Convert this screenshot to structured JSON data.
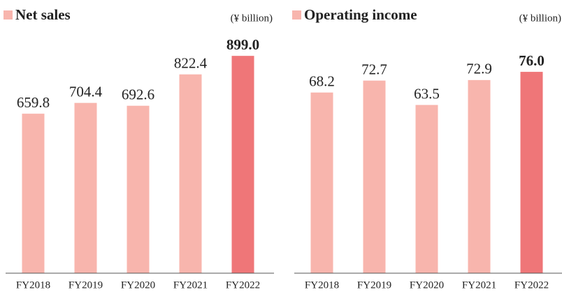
{
  "chart_data": [
    {
      "type": "bar",
      "title": "Net sales",
      "subtitle": "(¥ billion)",
      "categories": [
        "FY2018",
        "FY2019",
        "FY2020",
        "FY2021",
        "FY2022"
      ],
      "values": [
        659.8,
        704.4,
        692.6,
        822.4,
        899.0
      ],
      "value_labels": [
        "659.8",
        "704.4",
        "692.6",
        "822.4",
        "899.0"
      ],
      "colors": [
        "#f8b5ad",
        "#f8b5ad",
        "#f8b5ad",
        "#f8b5ad",
        "#ef7678"
      ],
      "label_colors": [
        "#222222",
        "#222222",
        "#222222",
        "#222222",
        "#ef7678"
      ],
      "ylim": [
        0,
        960
      ]
    },
    {
      "type": "bar",
      "title": "Operating income",
      "subtitle": "(¥ billion)",
      "categories": [
        "FY2018",
        "FY2019",
        "FY2020",
        "FY2021",
        "FY2022"
      ],
      "values": [
        68.2,
        72.7,
        63.5,
        72.9,
        76.0
      ],
      "value_labels": [
        "68.2",
        "72.7",
        "63.5",
        "72.9",
        "76.0"
      ],
      "colors": [
        "#f8b5ad",
        "#f8b5ad",
        "#f8b5ad",
        "#f8b5ad",
        "#ef7678"
      ],
      "label_colors": [
        "#222222",
        "#222222",
        "#222222",
        "#222222",
        "#ef7678"
      ],
      "ylim": [
        0,
        87.6
      ]
    }
  ]
}
